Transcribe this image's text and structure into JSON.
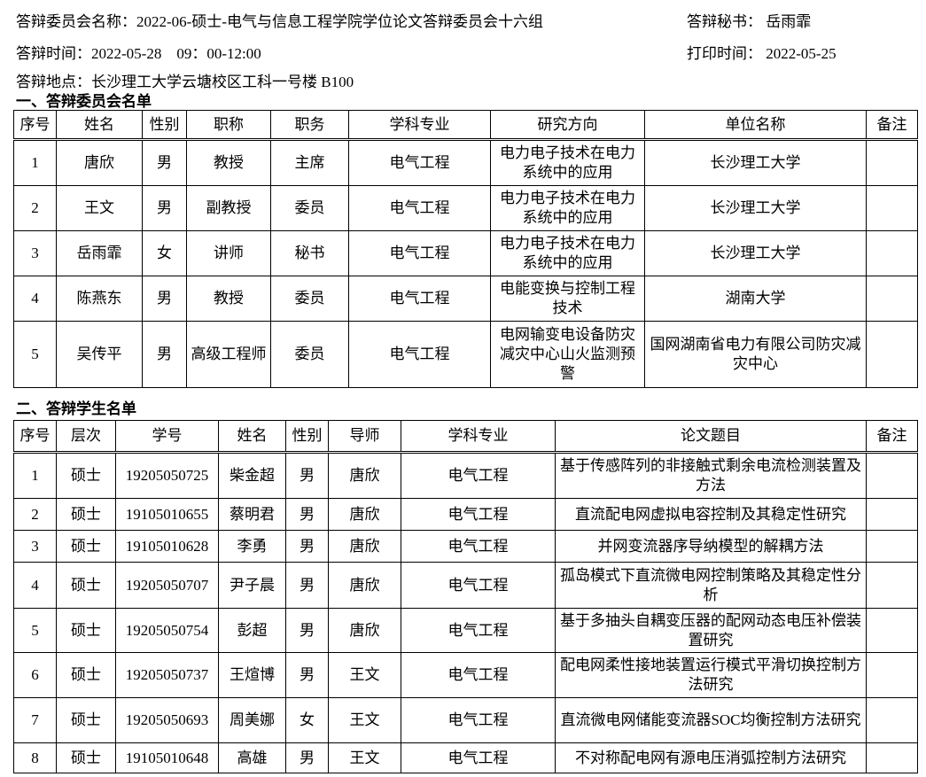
{
  "header": {
    "committee_name": "答辩委员会名称：2022-06-硕士-电气与信息工程学院学位论文答辩委员会十六组",
    "secretary_label": "答辩秘书：",
    "secretary": "岳雨霏",
    "time": "答辩时间：2022-05-28　09：00-12:00",
    "print_label": "打印时间：",
    "print_date": "2022-05-25",
    "location": "答辩地点：长沙理工大学云塘校区工科一号楼 B100"
  },
  "committee": {
    "title": "一、答辩委员会名单",
    "columns": [
      "序号",
      "姓名",
      "性别",
      "职称",
      "职务",
      "学科专业",
      "研究方向",
      "单位名称",
      "备注"
    ],
    "rows": [
      [
        "1",
        "唐欣",
        "男",
        "教授",
        "主席",
        "电气工程",
        "电力电子技术在电力系统中的应用",
        "长沙理工大学",
        ""
      ],
      [
        "2",
        "王文",
        "男",
        "副教授",
        "委员",
        "电气工程",
        "电力电子技术在电力系统中的应用",
        "长沙理工大学",
        ""
      ],
      [
        "3",
        "岳雨霏",
        "女",
        "讲师",
        "秘书",
        "电气工程",
        "电力电子技术在电力系统中的应用",
        "长沙理工大学",
        ""
      ],
      [
        "4",
        "陈燕东",
        "男",
        "教授",
        "委员",
        "电气工程",
        "电能变换与控制工程技术",
        "湖南大学",
        ""
      ],
      [
        "5",
        "吴传平",
        "男",
        "高级工程师",
        "委员",
        "电气工程",
        "电网输变电设备防灾减灾中心山火监测预警",
        "国网湖南省电力有限公司防灾减灾中心",
        ""
      ]
    ]
  },
  "students": {
    "title": "二、答辩学生名单",
    "columns": [
      "序号",
      "层次",
      "学号",
      "姓名",
      "性别",
      "导师",
      "学科专业",
      "论文题目",
      "备注"
    ],
    "rows": [
      [
        "1",
        "硕士",
        "19205050725",
        "柴金超",
        "男",
        "唐欣",
        "电气工程",
        "基于传感阵列的非接触式剩余电流检测装置及方法",
        ""
      ],
      [
        "2",
        "硕士",
        "19105010655",
        "蔡明君",
        "男",
        "唐欣",
        "电气工程",
        "直流配电网虚拟电容控制及其稳定性研究",
        ""
      ],
      [
        "3",
        "硕士",
        "19105010628",
        "李勇",
        "男",
        "唐欣",
        "电气工程",
        "并网变流器序导纳模型的解耦方法",
        ""
      ],
      [
        "4",
        "硕士",
        "19205050707",
        "尹子晨",
        "男",
        "唐欣",
        "电气工程",
        "孤岛模式下直流微电网控制策略及其稳定性分析",
        ""
      ],
      [
        "5",
        "硕士",
        "19205050754",
        "彭超",
        "男",
        "唐欣",
        "电气工程",
        "基于多抽头自耦变压器的配网动态电压补偿装置研究",
        ""
      ],
      [
        "6",
        "硕士",
        "19205050737",
        "王煊博",
        "男",
        "王文",
        "电气工程",
        "配电网柔性接地装置运行模式平滑切换控制方法研究",
        ""
      ],
      [
        "7",
        "硕士",
        "19205050693",
        "周美娜",
        "女",
        "王文",
        "电气工程",
        "直流微电网储能变流器SOC均衡控制方法研究",
        ""
      ],
      [
        "8",
        "硕士",
        "19105010648",
        "高雄",
        "男",
        "王文",
        "电气工程",
        "不对称配电网有源电压消弧控制方法研究",
        ""
      ]
    ]
  }
}
